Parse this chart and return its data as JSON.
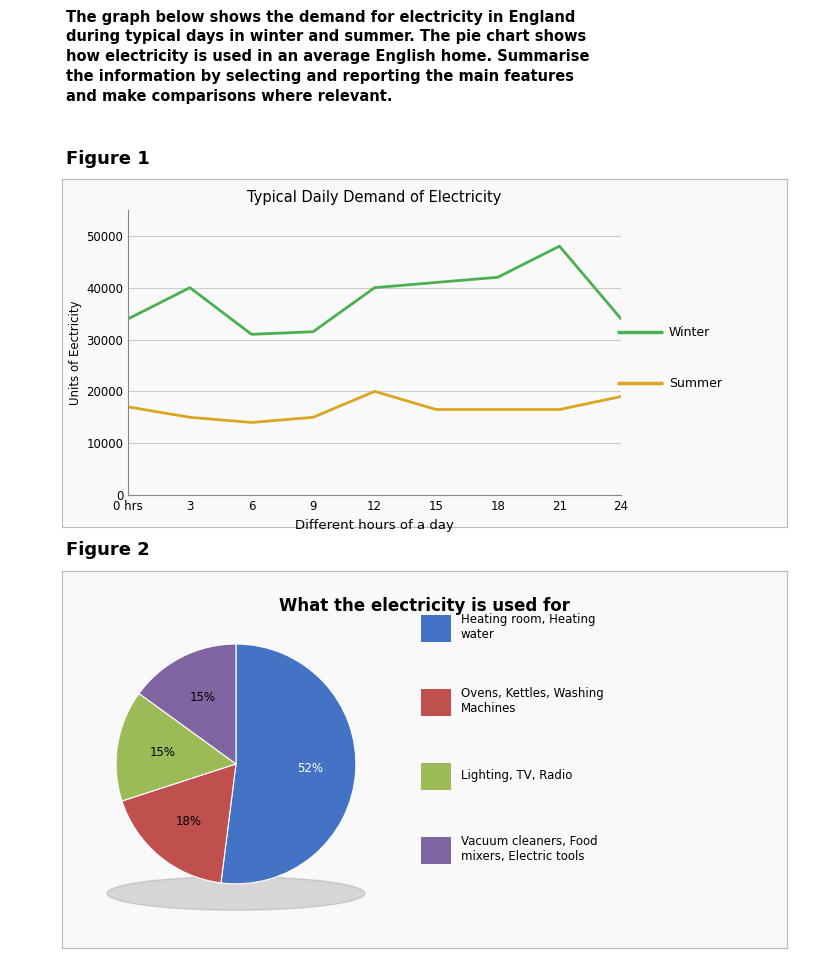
{
  "intro_text": "The graph below shows the demand for electricity in England\nduring typical days in winter and summer. The pie chart shows\nhow electricity is used in an average English home. Summarise\nthe information by selecting and reporting the main features\nand make comparisons where relevant.",
  "fig1_label": "Figure 1",
  "fig2_label": "Figure 2",
  "line_title": "Typical Daily Demand of Electricity",
  "line_xlabel": "Different hours of a day",
  "line_ylabel": "Units of Eectricity",
  "hours": [
    0,
    3,
    6,
    9,
    12,
    15,
    18,
    21,
    24
  ],
  "winter": [
    34000,
    40000,
    31000,
    31500,
    40000,
    41000,
    42000,
    48000,
    34000
  ],
  "summer": [
    17000,
    15000,
    14000,
    15000,
    20000,
    16500,
    16500,
    16500,
    19000
  ],
  "winter_color": "#4CAF50",
  "summer_color": "#DAA520",
  "line_ylim": [
    0,
    55000
  ],
  "line_yticks": [
    0,
    10000,
    20000,
    30000,
    40000,
    50000
  ],
  "line_xticks": [
    0,
    3,
    6,
    9,
    12,
    15,
    18,
    21,
    24
  ],
  "line_xtick_labels": [
    "0 hrs",
    "3",
    "6",
    "9",
    "12",
    "15",
    "18",
    "21",
    "24"
  ],
  "pie_title": "What the electricity is used for",
  "pie_values": [
    52,
    18,
    15,
    15
  ],
  "pie_labels": [
    "52%",
    "18%",
    "15%",
    "15%"
  ],
  "pie_colors": [
    "#4472C4",
    "#C0504D",
    "#9BBB59",
    "#8064A2"
  ],
  "pie_legend_labels": [
    "Heating room, Heating\nwater",
    "Ovens, Kettles, Washing\nMachines",
    "Lighting, TV, Radio",
    "Vacuum cleaners, Food\nmixers, Electric tools"
  ],
  "background_color": "#FFFFFF",
  "box_facecolor": "#F9F9F9",
  "box_edgecolor": "#BBBBBB"
}
